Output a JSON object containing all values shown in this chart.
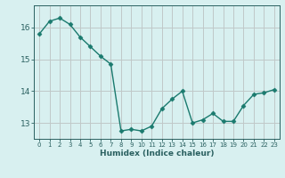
{
  "x": [
    0,
    1,
    2,
    3,
    4,
    5,
    6,
    7,
    8,
    9,
    10,
    11,
    12,
    13,
    14,
    15,
    16,
    17,
    18,
    19,
    20,
    21,
    22,
    23
  ],
  "y": [
    15.8,
    16.2,
    16.3,
    16.1,
    15.7,
    15.4,
    15.1,
    14.85,
    12.75,
    12.8,
    12.75,
    12.9,
    13.45,
    13.75,
    14.0,
    13.0,
    13.1,
    13.3,
    13.05,
    13.05,
    13.55,
    13.9,
    13.95,
    14.05
  ],
  "xlabel": "Humidex (Indice chaleur)",
  "ylim": [
    12.5,
    16.7
  ],
  "xlim": [
    -0.5,
    23.5
  ],
  "yticks": [
    13,
    14,
    15,
    16
  ],
  "xticks": [
    0,
    1,
    2,
    3,
    4,
    5,
    6,
    7,
    8,
    9,
    10,
    11,
    12,
    13,
    14,
    15,
    16,
    17,
    18,
    19,
    20,
    21,
    22,
    23
  ],
  "line_color": "#1a7a6e",
  "marker_color": "#1a7a6e",
  "bg_color": "#d8f0f0",
  "grid_color": "#c0c8c8",
  "axis_color": "#2a6060",
  "tick_label_color": "#2a6060",
  "xlabel_color": "#2a6060"
}
